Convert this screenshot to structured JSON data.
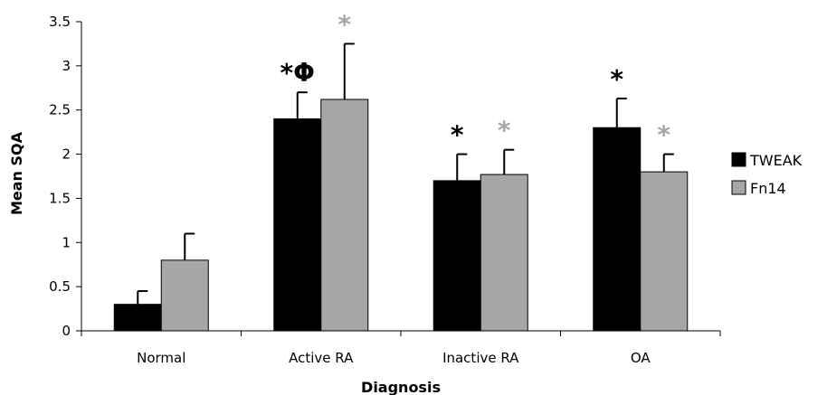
{
  "chart_data": {
    "type": "bar",
    "title": "",
    "xlabel": "Diagnosis",
    "ylabel": "Mean SQA",
    "ylim": [
      0,
      3.5
    ],
    "yticks": [
      "0",
      "0.5",
      "1",
      "1.5",
      "2",
      "2.5",
      "3",
      "3.5"
    ],
    "categories": [
      "Normal",
      "Active RA",
      "Inactive RA",
      "OA"
    ],
    "series": [
      {
        "name": "TWEAK",
        "color": "#000000",
        "values": [
          0.3,
          2.4,
          1.7,
          2.3
        ],
        "errors": [
          0.15,
          0.3,
          0.3,
          0.33
        ],
        "significance": [
          "",
          "*Φ",
          "*",
          "*"
        ],
        "significance_color": "#000000"
      },
      {
        "name": "Fn14",
        "color": "#a6a6a6",
        "values": [
          0.8,
          2.62,
          1.77,
          1.8
        ],
        "errors": [
          0.3,
          0.63,
          0.28,
          0.2
        ],
        "significance": [
          "",
          "*",
          "*",
          "*"
        ],
        "significance_color": "#a6a6a6"
      }
    ],
    "legend_position": "right",
    "grid": false
  }
}
